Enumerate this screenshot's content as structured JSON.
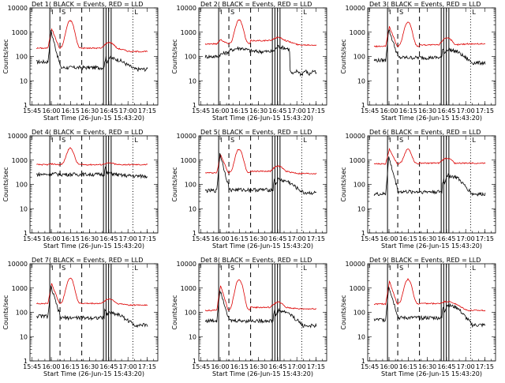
{
  "chart_data": {
    "type": "line",
    "xlabel": "Start Time (26-Jun-15 15:43:20)",
    "ylabel": "Counts/sec",
    "xticks": [
      "15:45",
      "16:00",
      "16:15",
      "16:30",
      "16:45",
      "17:00",
      "17:15"
    ],
    "xtick_minutes": [
      1.67,
      16.67,
      31.67,
      46.67,
      61.67,
      76.67,
      91.67
    ],
    "xlim_minutes": [
      0,
      100
    ],
    "ylim": [
      1,
      10000
    ],
    "yscale": "log",
    "yticks": [
      "1",
      "10",
      "100",
      "1000",
      "10000"
    ],
    "ytick_values": [
      1,
      10,
      100,
      1000,
      10000
    ],
    "legend": {
      "black": "Events",
      "red": "LLD"
    },
    "colors": {
      "events": "#000000",
      "lld": "#dd0000"
    },
    "time_markers": [
      {
        "label": "I",
        "t": 15.5,
        "style": "solid"
      },
      {
        "label": "S",
        "t": 23.5,
        "style": "dash"
      },
      {
        "label": "",
        "t": 40.5,
        "style": "dash"
      },
      {
        "label": "",
        "t": 57.5,
        "style": "solid"
      },
      {
        "label": "",
        "t": 59.5,
        "style": "solid"
      },
      {
        "label": "",
        "t": 61.5,
        "style": "solid"
      },
      {
        "label": "",
        "t": 63.5,
        "style": "solid"
      },
      {
        "label": "L",
        "t": 80.5,
        "style": "dot"
      }
    ],
    "panels": [
      {
        "title": "Det 1( BLACK = Events, RED = LLD",
        "events": {
          "baseline": 60,
          "tail": 30,
          "spike": 1100,
          "mid": 35,
          "hump": null,
          "bump": 90,
          "dropT": null,
          "dropTo": null
        },
        "lld": {
          "baseline": 220,
          "spike": 1400,
          "peak": 3000,
          "after": 220,
          "bump": 380,
          "end": 160
        }
      },
      {
        "title": "Det 2( BLACK = Events, RED = LLD",
        "events": {
          "baseline": 100,
          "tail": 25,
          "spike": 120,
          "mid": 160,
          "hump": 220,
          "bump": 260,
          "dropT": 71,
          "dropTo": 22
        },
        "lld": {
          "baseline": 330,
          "spike": 500,
          "peak": 3200,
          "after": 450,
          "bump": 600,
          "end": 300
        }
      },
      {
        "title": "Det 3( BLACK = Events, RED = LLD",
        "events": {
          "baseline": 70,
          "tail": 55,
          "spike": 1300,
          "mid": 90,
          "hump": null,
          "bump": 200,
          "dropT": null,
          "dropTo": null
        },
        "lld": {
          "baseline": 260,
          "spike": 1700,
          "peak": 2600,
          "after": 300,
          "bump": 600,
          "end": 330
        }
      },
      {
        "title": "Det 4( BLACK = Events, RED = LLD",
        "events": {
          "baseline": 260,
          "tail": 220,
          "spike": 280,
          "mid": 260,
          "hump": null,
          "bump": 300,
          "dropT": null,
          "dropTo": null
        },
        "lld": {
          "baseline": 650,
          "spike": 700,
          "peak": 3100,
          "after": 650,
          "bump": 750,
          "end": 650
        }
      },
      {
        "title": "Det 5( BLACK = Events, RED = LLD",
        "events": {
          "baseline": 55,
          "tail": 45,
          "spike": 1900,
          "mid": 60,
          "hump": null,
          "bump": 160,
          "dropT": null,
          "dropTo": null
        },
        "lld": {
          "baseline": 300,
          "spike": 1700,
          "peak": 2800,
          "after": 350,
          "bump": 560,
          "end": 280
        }
      },
      {
        "title": "Det 6( BLACK = Events, RED = LLD",
        "events": {
          "baseline": 40,
          "tail": 40,
          "spike": 1300,
          "mid": 50,
          "hump": null,
          "bump": 240,
          "dropT": null,
          "dropTo": null
        },
        "lld": {
          "baseline": 700,
          "spike": 2900,
          "peak": 2800,
          "after": 750,
          "bump": 1200,
          "end": 750
        }
      },
      {
        "title": "Det 7( BLACK = Events, RED = LLD",
        "events": {
          "baseline": 70,
          "tail": 30,
          "spike": 1100,
          "mid": 60,
          "hump": null,
          "bump": 100,
          "dropT": null,
          "dropTo": null
        },
        "lld": {
          "baseline": 230,
          "spike": 1500,
          "peak": 2600,
          "after": 230,
          "bump": 350,
          "end": 200
        }
      },
      {
        "title": "Det 8( BLACK = Events, RED = LLD",
        "events": {
          "baseline": 45,
          "tail": 28,
          "spike": 900,
          "mid": 45,
          "hump": null,
          "bump": 120,
          "dropT": null,
          "dropTo": null
        },
        "lld": {
          "baseline": 120,
          "spike": 1300,
          "peak": 2200,
          "after": 160,
          "bump": 260,
          "end": 140
        }
      },
      {
        "title": "Det 9( BLACK = Events, RED = LLD",
        "events": {
          "baseline": 50,
          "tail": 30,
          "spike": 1200,
          "mid": 60,
          "hump": null,
          "bump": 200,
          "dropT": null,
          "dropTo": null
        },
        "lld": {
          "baseline": 220,
          "spike": 1900,
          "peak": 2300,
          "after": 230,
          "bump": 280,
          "end": 120
        }
      }
    ]
  }
}
